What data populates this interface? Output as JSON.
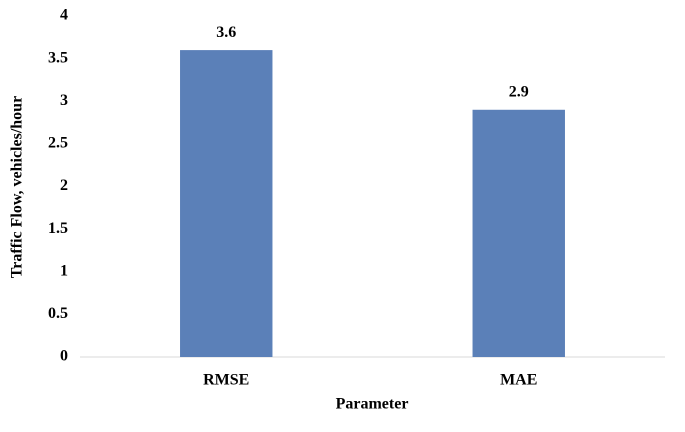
{
  "chart_data": {
    "type": "bar",
    "categories": [
      "RMSE",
      "MAE"
    ],
    "values": [
      3.6,
      2.9
    ],
    "color": "#5b80b8",
    "xlabel": "Parameter",
    "ylabel": "Traffic Flow,  vehicles/hour",
    "ylim": [
      0,
      4
    ],
    "yticks": [
      0,
      0.5,
      1,
      1.5,
      2,
      2.5,
      3,
      3.5,
      4
    ],
    "grid": false
  }
}
